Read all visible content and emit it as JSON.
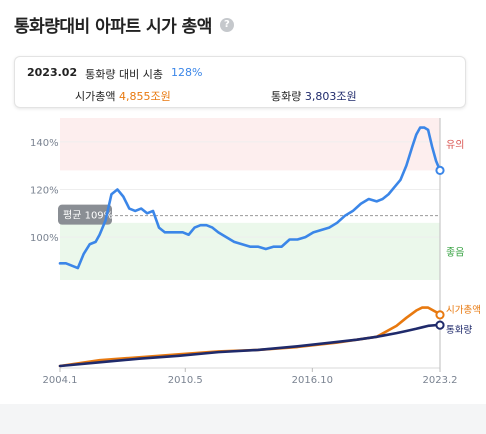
{
  "header": {
    "title": "통화량대비 아파트 시가 총액",
    "help_icon": "?"
  },
  "summary": {
    "date": "2023.02",
    "ratio_label": "통화량 대비 시총",
    "ratio_value": "128%",
    "mcap_label": "시가총액",
    "mcap_value": "4,855조원",
    "money_label": "통화량",
    "money_value": "3,803조원"
  },
  "colors": {
    "ratio": "#3b86e8",
    "mcap": "#e8790f",
    "money": "#1f2a6b",
    "caution_band": "#fdeeee",
    "good_band": "#ebf8eb"
  },
  "chart_data": [
    {
      "type": "line",
      "title": "",
      "yticks": [
        "140%",
        "120%",
        "100%"
      ],
      "ylim": [
        82,
        150
      ],
      "zones": [
        {
          "label": "유의",
          "from": 128,
          "to": 150,
          "color": "#d9534f"
        },
        {
          "label": "좋음",
          "from": 82,
          "to": 106,
          "color": "#3aa345"
        }
      ],
      "average": {
        "label": "평균 109%",
        "value": 109
      },
      "series": [
        {
          "name": "",
          "x": [
            2004.0,
            2004.3,
            2004.6,
            2004.9,
            2005.2,
            2005.5,
            2005.8,
            2006.0,
            2006.3,
            2006.6,
            2006.9,
            2007.2,
            2007.5,
            2007.8,
            2008.1,
            2008.4,
            2008.7,
            2009.0,
            2009.3,
            2009.6,
            2009.9,
            2010.2,
            2010.5,
            2010.8,
            2011.1,
            2011.4,
            2011.7,
            2012.0,
            2012.4,
            2012.8,
            2013.2,
            2013.6,
            2014.0,
            2014.4,
            2014.8,
            2015.2,
            2015.6,
            2016.0,
            2016.4,
            2016.8,
            2017.2,
            2017.6,
            2018.0,
            2018.4,
            2018.8,
            2019.2,
            2019.6,
            2020.0,
            2020.3,
            2020.6,
            2020.9,
            2021.2,
            2021.5,
            2021.8,
            2022.0,
            2022.2,
            2022.4,
            2022.6,
            2022.8,
            2023.0,
            2023.2
          ],
          "values": [
            89,
            89,
            88,
            87,
            93,
            97,
            98,
            101,
            107,
            118,
            120,
            117,
            112,
            111,
            112,
            110,
            111,
            104,
            102,
            102,
            102,
            102,
            101,
            104,
            105,
            105,
            104,
            102,
            100,
            98,
            97,
            96,
            96,
            95,
            96,
            96,
            99,
            99,
            100,
            102,
            103,
            104,
            106,
            109,
            111,
            114,
            116,
            115,
            116,
            118,
            121,
            124,
            130,
            138,
            143,
            146,
            146,
            145,
            138,
            132,
            128
          ]
        }
      ],
      "xticks": [
        "2004.1",
        "2010.5",
        "2016.10",
        "2023.2"
      ]
    },
    {
      "type": "line",
      "title": "",
      "series": [
        {
          "name": "시가총액",
          "x": [
            2004.0,
            2006.0,
            2008.0,
            2010.0,
            2012.0,
            2014.0,
            2016.0,
            2018.0,
            2019.0,
            2020.0,
            2021.0,
            2021.5,
            2022.0,
            2022.3,
            2022.6,
            2023.0,
            2023.2
          ],
          "values": [
            0.0,
            0.08,
            0.12,
            0.16,
            0.2,
            0.22,
            0.26,
            0.32,
            0.36,
            0.4,
            0.55,
            0.66,
            0.76,
            0.8,
            0.8,
            0.74,
            0.7
          ]
        },
        {
          "name": "통화량",
          "x": [
            2004.0,
            2006.0,
            2008.0,
            2010.0,
            2012.0,
            2014.0,
            2016.0,
            2018.0,
            2019.0,
            2020.0,
            2021.0,
            2021.5,
            2022.0,
            2022.3,
            2022.6,
            2023.0,
            2023.2
          ],
          "values": [
            0.0,
            0.05,
            0.1,
            0.14,
            0.19,
            0.22,
            0.27,
            0.33,
            0.36,
            0.4,
            0.45,
            0.48,
            0.51,
            0.53,
            0.55,
            0.56,
            0.56
          ]
        }
      ]
    }
  ]
}
